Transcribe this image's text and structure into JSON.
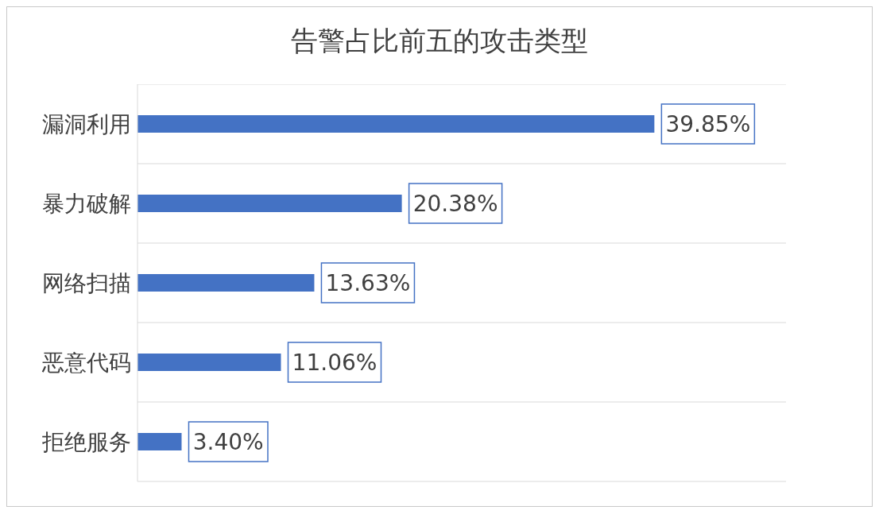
{
  "chart_data": {
    "type": "bar",
    "title": "告警占比前五的攻击类型",
    "orientation": "horizontal",
    "categories": [
      "漏洞利用",
      "暴力破解",
      "网络扫描",
      "恶意代码",
      "拒绝服务"
    ],
    "values": [
      39.85,
      20.38,
      13.63,
      11.06,
      3.4
    ],
    "value_labels": [
      "39.85%",
      "20.38%",
      "13.63%",
      "11.06%",
      "3.40%"
    ],
    "color": "#4472c4",
    "xlim": [
      0,
      50
    ],
    "tick_labels": "y",
    "grid": "y"
  }
}
